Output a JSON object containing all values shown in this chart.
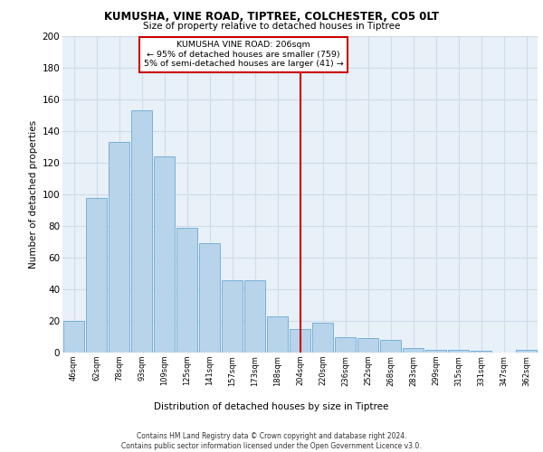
{
  "title1": "KUMUSHA, VINE ROAD, TIPTREE, COLCHESTER, CO5 0LT",
  "title2": "Size of property relative to detached houses in Tiptree",
  "xlabel": "Distribution of detached houses by size in Tiptree",
  "ylabel": "Number of detached properties",
  "categories": [
    "46sqm",
    "62sqm",
    "78sqm",
    "93sqm",
    "109sqm",
    "125sqm",
    "141sqm",
    "157sqm",
    "173sqm",
    "188sqm",
    "204sqm",
    "220sqm",
    "236sqm",
    "252sqm",
    "268sqm",
    "283sqm",
    "299sqm",
    "315sqm",
    "331sqm",
    "347sqm",
    "362sqm"
  ],
  "values": [
    20,
    98,
    133,
    153,
    124,
    79,
    69,
    46,
    46,
    23,
    15,
    19,
    10,
    9,
    8,
    3,
    2,
    2,
    1,
    0,
    2
  ],
  "bar_color": "#b8d4ea",
  "bar_edgecolor": "#6aaad4",
  "vline_x_index": 10,
  "vline_color": "#cc0000",
  "annotation_text": "KUMUSHA VINE ROAD: 206sqm\n← 95% of detached houses are smaller (759)\n5% of semi-detached houses are larger (41) →",
  "annotation_box_color": "#cc0000",
  "footnote": "Contains HM Land Registry data © Crown copyright and database right 2024.\nContains public sector information licensed under the Open Government Licence v3.0.",
  "yticks": [
    0,
    20,
    40,
    60,
    80,
    100,
    120,
    140,
    160,
    180,
    200
  ],
  "ylim": [
    0,
    200
  ],
  "bg_color": "#e8f0f8",
  "grid_color": "#d0dce8"
}
